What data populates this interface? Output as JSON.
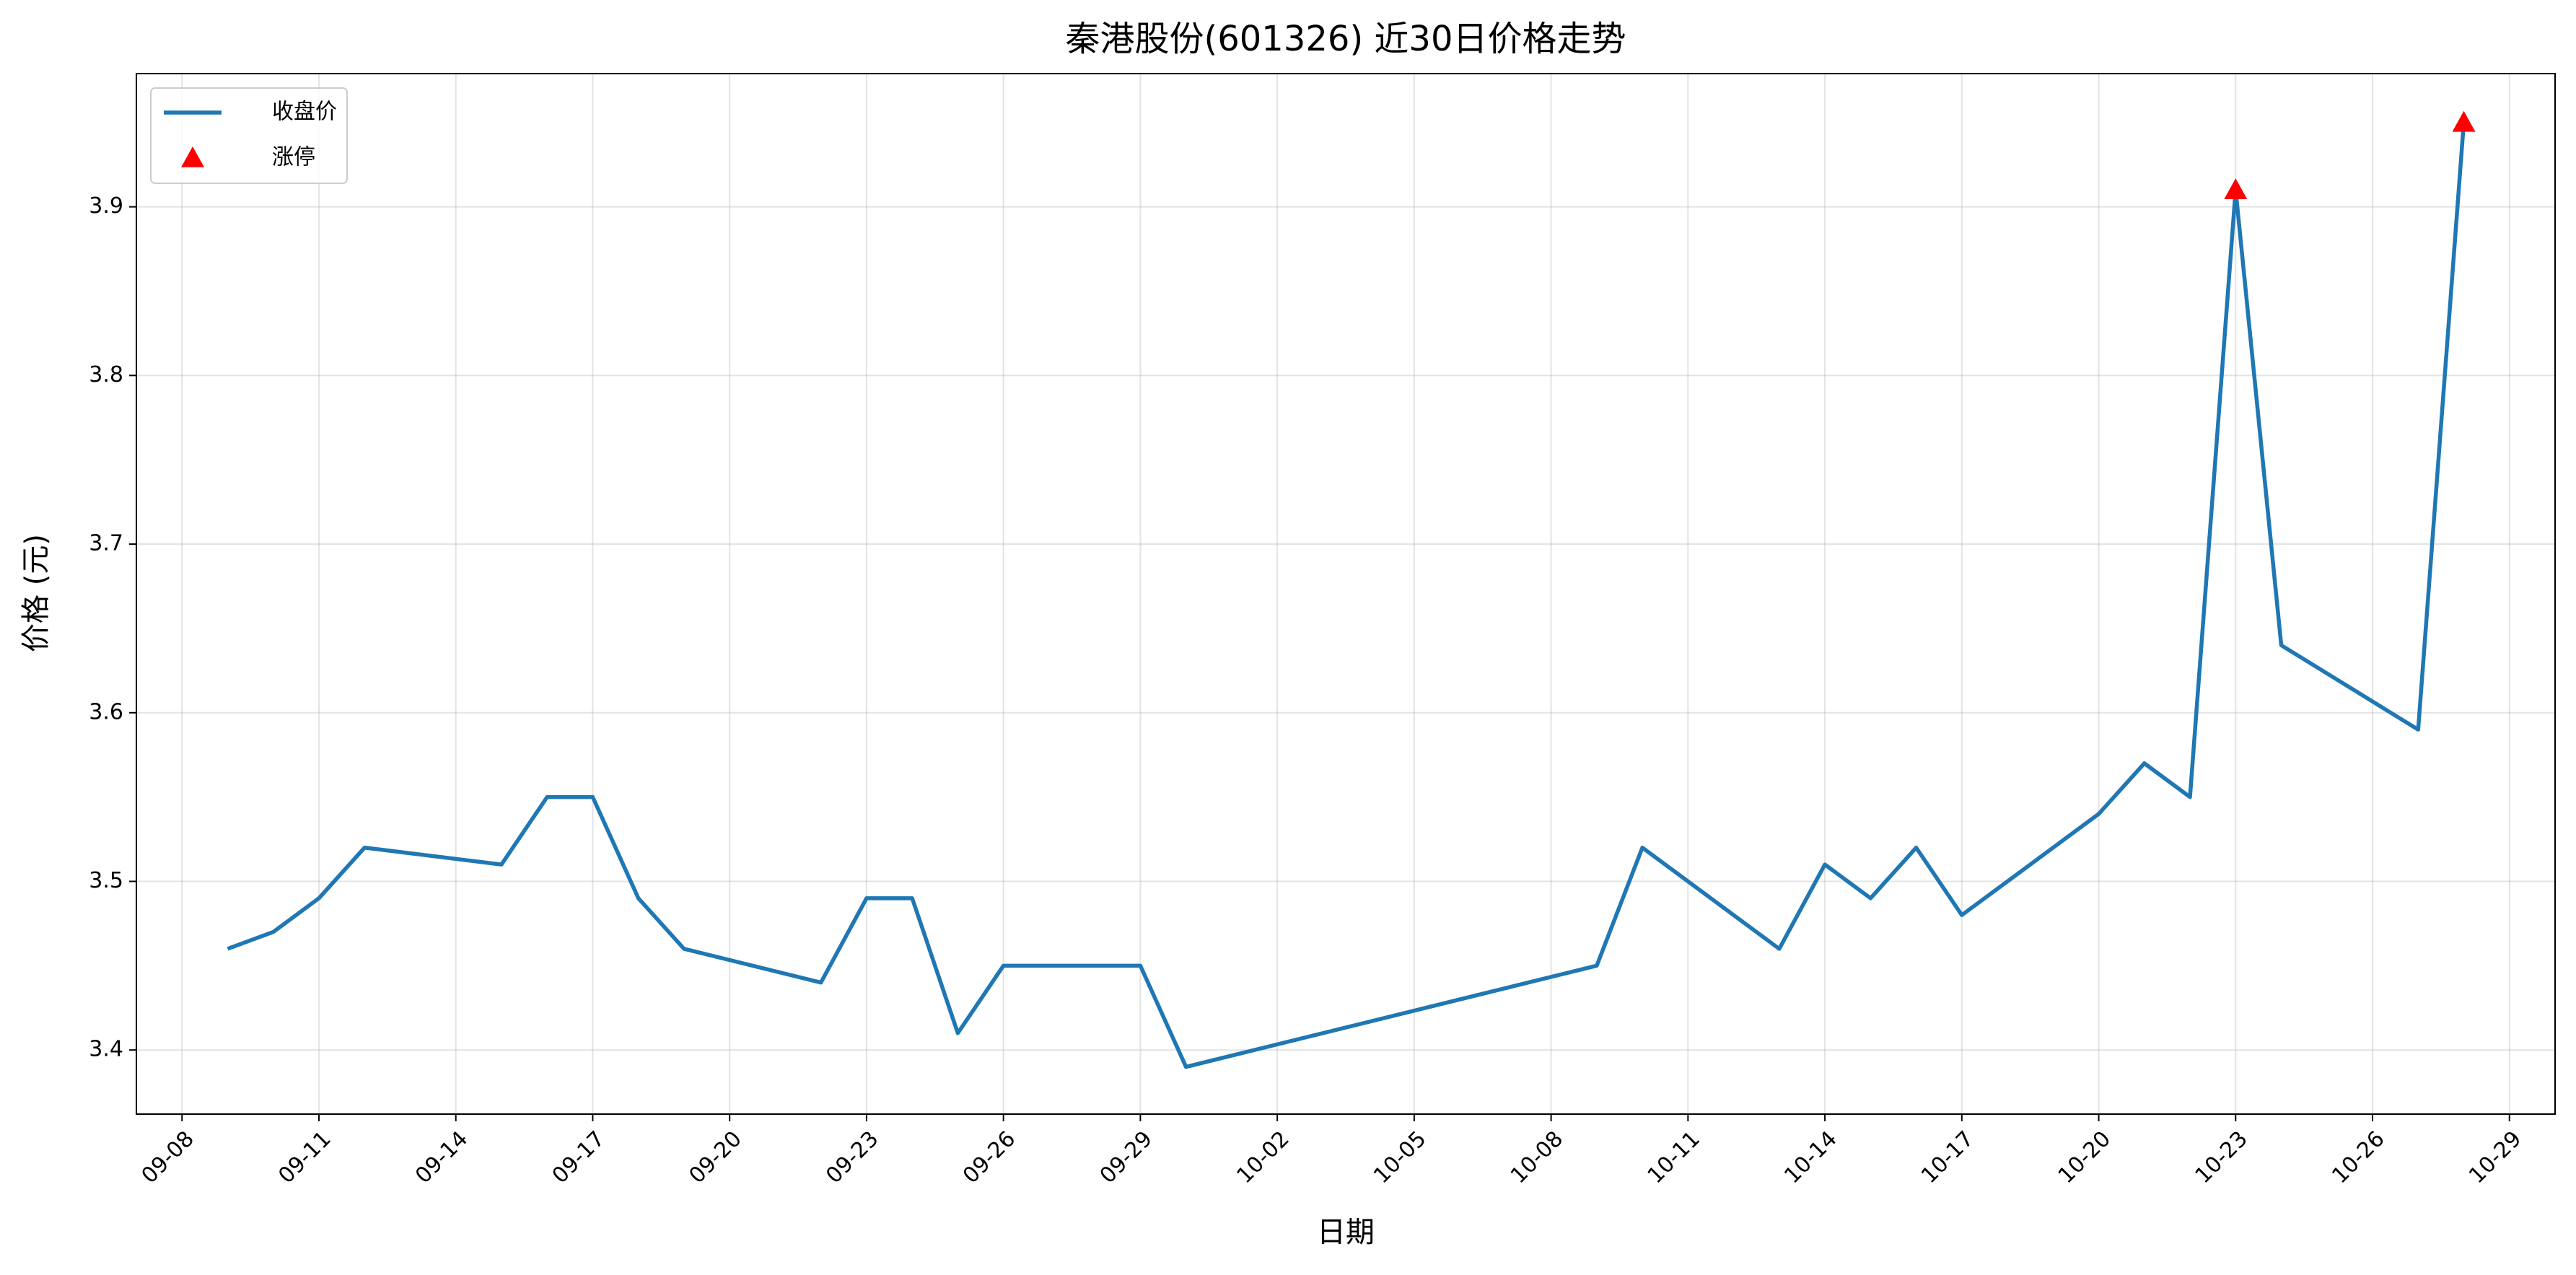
{
  "chart_data": {
    "type": "line",
    "title": "秦港股份(601326) 近30日价格走势",
    "xlabel": "日期",
    "ylabel": "价格 (元)",
    "series": [
      {
        "name": "收盘价",
        "color": "#1f77b4",
        "x": [
          "09-09",
          "09-10",
          "09-11",
          "09-12",
          "09-15",
          "09-16",
          "09-17",
          "09-18",
          "09-19",
          "09-22",
          "09-23",
          "09-24",
          "09-25",
          "09-26",
          "09-29",
          "09-30",
          "10-09",
          "10-10",
          "10-13",
          "10-14",
          "10-15",
          "10-16",
          "10-17",
          "10-20",
          "10-21",
          "10-22",
          "10-23",
          "10-24",
          "10-27",
          "10-28"
        ],
        "values": [
          3.46,
          3.47,
          3.49,
          3.52,
          3.51,
          3.55,
          3.55,
          3.49,
          3.46,
          3.44,
          3.49,
          3.49,
          3.41,
          3.45,
          3.45,
          3.39,
          3.45,
          3.52,
          3.46,
          3.51,
          3.49,
          3.52,
          3.48,
          3.54,
          3.57,
          3.55,
          3.91,
          3.64,
          3.59,
          3.95
        ]
      },
      {
        "name": "涨停",
        "color": "#ff0000",
        "marker": "triangle",
        "x": [
          "10-23",
          "10-28"
        ],
        "values": [
          3.91,
          3.95
        ]
      }
    ],
    "xlim": [
      "09-07",
      "10-30"
    ],
    "xticks": [
      "09-08",
      "09-11",
      "09-14",
      "09-17",
      "09-20",
      "09-23",
      "09-26",
      "09-29",
      "10-02",
      "10-05",
      "10-08",
      "10-11",
      "10-14",
      "10-17",
      "10-20",
      "10-23",
      "10-26",
      "10-29"
    ],
    "ylim": [
      3.362,
      3.979
    ],
    "yticks": [
      3.4,
      3.5,
      3.6,
      3.7,
      3.8,
      3.9
    ],
    "grid": true,
    "legend": "upper left"
  }
}
